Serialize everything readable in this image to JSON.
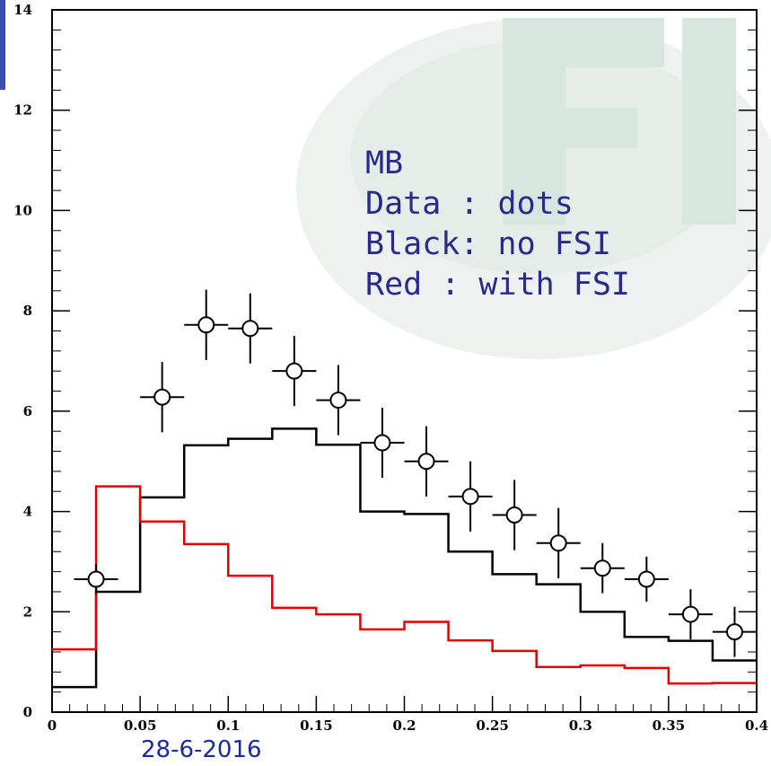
{
  "chart_data": {
    "type": "histogram",
    "xlim": [
      0,
      0.4
    ],
    "ylim": [
      0,
      14
    ],
    "x_tick_labels": [
      "0",
      "0.05",
      "0.1",
      "0.15",
      "0.2",
      "0.25",
      "0.3",
      "0.35",
      "0.4"
    ],
    "x_ticks": [
      0,
      0.05,
      0.1,
      0.15,
      0.2,
      0.25,
      0.3,
      0.35,
      0.4
    ],
    "y_tick_labels": [
      "0",
      "2",
      "4",
      "6",
      "8",
      "10",
      "12",
      "14"
    ],
    "y_ticks": [
      0,
      2,
      4,
      6,
      8,
      10,
      12,
      14
    ],
    "bin_edges": [
      0,
      0.025,
      0.05,
      0.075,
      0.1,
      0.125,
      0.15,
      0.175,
      0.2,
      0.225,
      0.25,
      0.275,
      0.3,
      0.325,
      0.35,
      0.375,
      0.4
    ],
    "series": [
      {
        "color": "#000000",
        "style": "step",
        "values": [
          0.5,
          2.4,
          4.28,
          5.32,
          5.45,
          5.65,
          5.33,
          4.0,
          3.95,
          3.2,
          2.75,
          2.55,
          2.0,
          1.5,
          1.42,
          1.03
        ]
      },
      {
        "color": "#e00000",
        "style": "step",
        "values": [
          1.25,
          4.5,
          3.8,
          3.35,
          2.72,
          2.08,
          1.95,
          1.65,
          1.8,
          1.43,
          1.22,
          0.9,
          0.93,
          0.88,
          0.57,
          0.58
        ]
      },
      {
        "color": "#000000",
        "style": "points",
        "x": [
          0.025,
          0.0625,
          0.0875,
          0.1125,
          0.1375,
          0.1625,
          0.1875,
          0.2125,
          0.2375,
          0.2625,
          0.2875,
          0.3125,
          0.3375,
          0.3625,
          0.3875
        ],
        "y": [
          2.65,
          6.28,
          7.72,
          7.65,
          6.8,
          6.22,
          5.37,
          5.0,
          4.3,
          3.93,
          3.37,
          2.87,
          2.65,
          1.95,
          1.6
        ],
        "y_err": [
          0.3,
          0.7,
          0.7,
          0.7,
          0.7,
          0.7,
          0.7,
          0.7,
          0.7,
          0.7,
          0.7,
          0.5,
          0.45,
          0.5,
          0.5
        ]
      }
    ]
  },
  "legend_lines": [
    "MB",
    "Data : dots",
    "Black: no FSI",
    "Red : with FSI"
  ],
  "footer_date": "28-6-2016",
  "colors": {
    "legend_text": "#2a2a8c",
    "date_text": "#1a2a9a",
    "watermark": "#cfded5"
  }
}
